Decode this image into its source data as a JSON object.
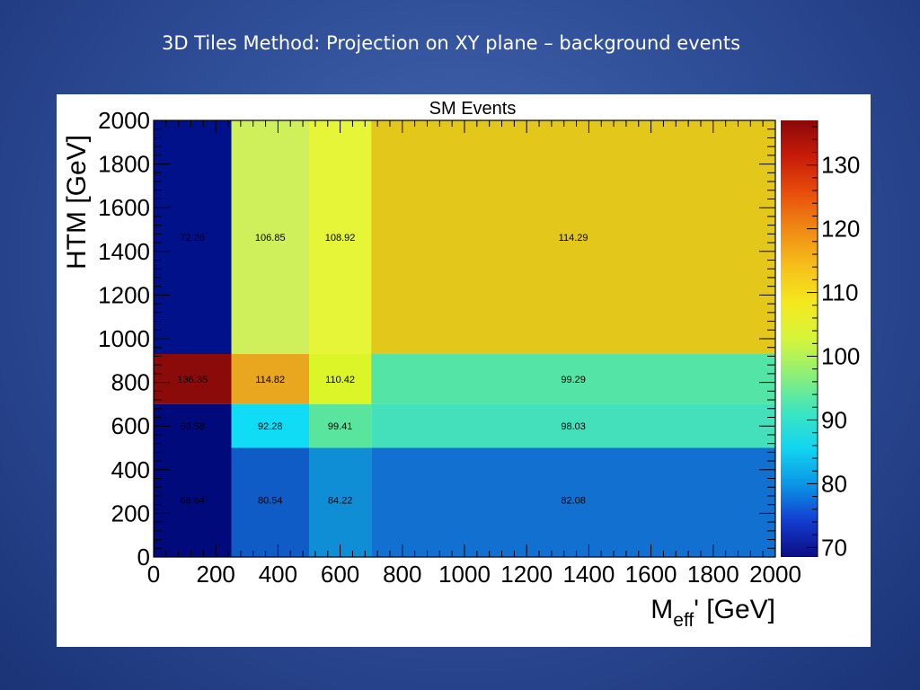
{
  "slide": {
    "title": "3D Tiles Method: Projection on XY plane – background events"
  },
  "chart_data": {
    "type": "heatmap",
    "title": "SM Events",
    "xlabel_main": "M",
    "xlabel_sub": "eff",
    "xlabel_rest": "' [GeV]",
    "ylabel": "HTM [GeV]",
    "xlim": [
      0,
      2000
    ],
    "ylim": [
      0,
      2000
    ],
    "x_ticks": [
      0,
      200,
      400,
      600,
      800,
      1000,
      1200,
      1400,
      1600,
      1800,
      2000
    ],
    "y_ticks": [
      0,
      200,
      400,
      600,
      800,
      1000,
      1200,
      1400,
      1600,
      1800,
      2000
    ],
    "x_edges": [
      0,
      250,
      500,
      700,
      2000
    ],
    "y_edges": [
      0,
      500,
      700,
      930,
      2000
    ],
    "z_range": [
      68.5,
      137
    ],
    "colorbar_ticks": [
      70,
      80,
      90,
      100,
      110,
      120,
      130
    ],
    "cells": [
      {
        "x": [
          0,
          250
        ],
        "y": [
          930,
          2000
        ],
        "value": 72.26,
        "label": "72.26",
        "color": "#00118a"
      },
      {
        "x": [
          250,
          500
        ],
        "y": [
          930,
          2000
        ],
        "value": 106.85,
        "label": "106.85",
        "color": "#cff05a"
      },
      {
        "x": [
          500,
          700
        ],
        "y": [
          930,
          2000
        ],
        "value": 108.92,
        "label": "108.92",
        "color": "#e6f537"
      },
      {
        "x": [
          700,
          2000
        ],
        "y": [
          930,
          2000
        ],
        "value": 114.29,
        "label": "114.29",
        "color": "#e3c81b"
      },
      {
        "x": [
          0,
          250
        ],
        "y": [
          700,
          930
        ],
        "value": 136.35,
        "label": "136.35",
        "color": "#8b0a0a"
      },
      {
        "x": [
          250,
          500
        ],
        "y": [
          700,
          930
        ],
        "value": 114.82,
        "label": "114.82",
        "color": "#e8a71e"
      },
      {
        "x": [
          500,
          700
        ],
        "y": [
          700,
          930
        ],
        "value": 110.42,
        "label": "110.42",
        "color": "#dcf528"
      },
      {
        "x": [
          700,
          2000
        ],
        "y": [
          700,
          930
        ],
        "value": 99.29,
        "label": "99.29",
        "color": "#54e4a6"
      },
      {
        "x": [
          0,
          250
        ],
        "y": [
          500,
          700
        ],
        "value": 68.58,
        "label": "68.58",
        "color": "#000a7a"
      },
      {
        "x": [
          250,
          500
        ],
        "y": [
          500,
          700
        ],
        "value": 92.28,
        "label": "92.28",
        "color": "#11dcf5"
      },
      {
        "x": [
          500,
          700
        ],
        "y": [
          500,
          700
        ],
        "value": 99.41,
        "label": "99.41",
        "color": "#5ae59e"
      },
      {
        "x": [
          700,
          2000
        ],
        "y": [
          500,
          700
        ],
        "value": 98.03,
        "label": "98.03",
        "color": "#44dfbb"
      },
      {
        "x": [
          0,
          250
        ],
        "y": [
          0,
          500
        ],
        "value": 68.64,
        "label": "68.64",
        "color": "#000a7a"
      },
      {
        "x": [
          250,
          500
        ],
        "y": [
          0,
          500
        ],
        "value": 80.54,
        "label": "80.54",
        "color": "#0f5cc6"
      },
      {
        "x": [
          500,
          700
        ],
        "y": [
          0,
          500
        ],
        "value": 84.22,
        "label": "84.22",
        "color": "#0f8ed6"
      },
      {
        "x": [
          700,
          2000
        ],
        "y": [
          0,
          500
        ],
        "value": 82.08,
        "label": "82.08",
        "color": "#1270d0"
      }
    ],
    "colormap": [
      "#0c0c82",
      "#133dd0",
      "#0b96e6",
      "#12d5f0",
      "#3ee5c0",
      "#8cef78",
      "#d6f53a",
      "#f4e81f",
      "#f6bf1a",
      "#f08a14",
      "#e84e0c",
      "#c81c08",
      "#8a0808"
    ]
  }
}
